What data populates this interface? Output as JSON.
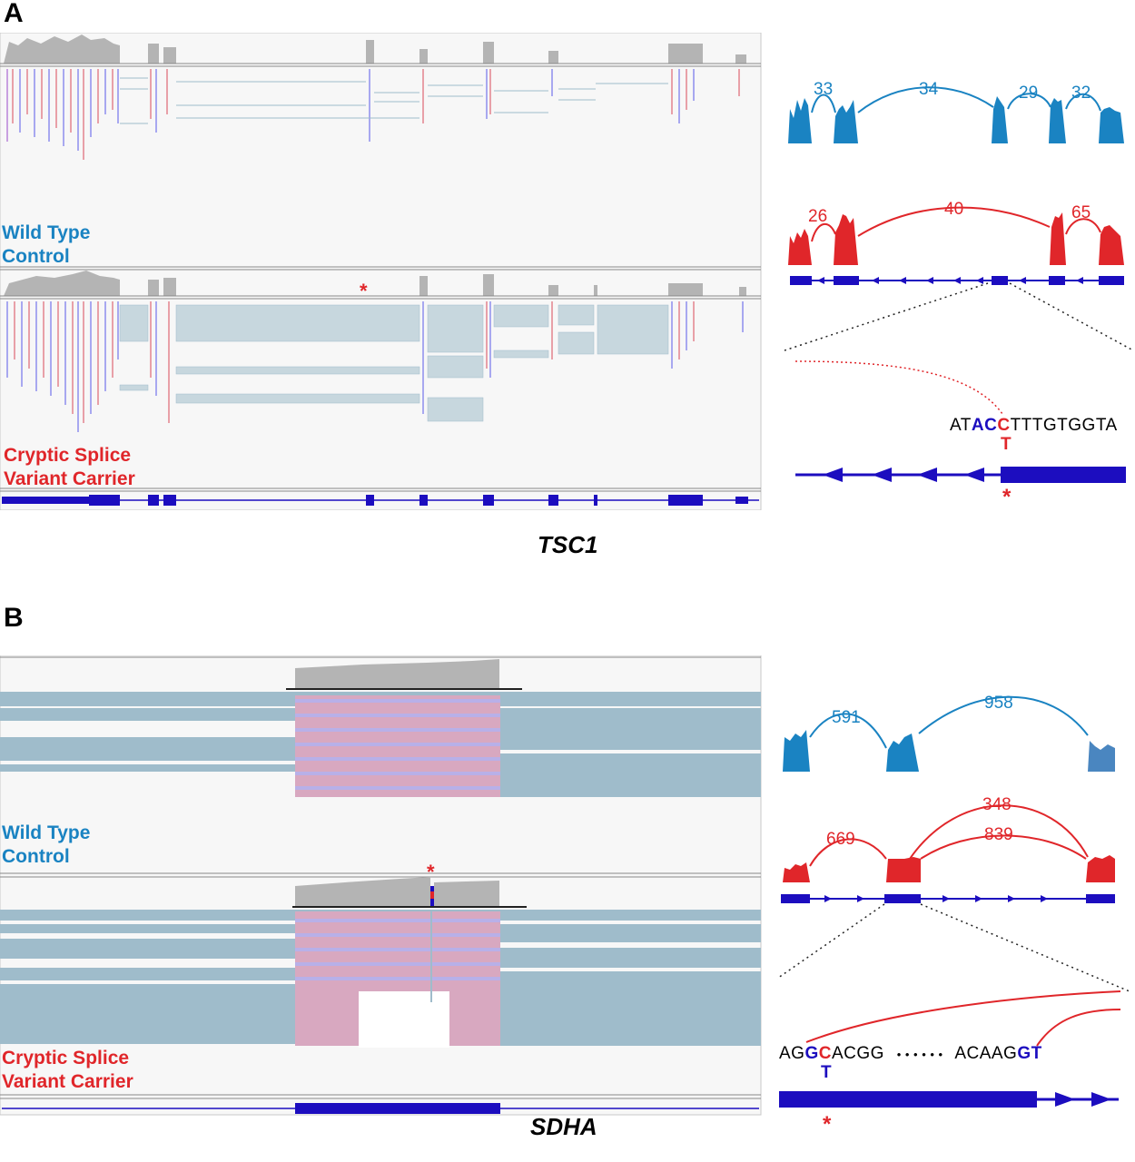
{
  "panels": [
    {
      "letter": "A",
      "gene": "TSC1",
      "wild_label_line1": "Wild Type",
      "wild_label_line2": "Control",
      "carrier_label_line1": "Cryptic Splice",
      "carrier_label_line2": "Variant Carrier",
      "wild_junction_counts": [
        "33",
        "34",
        "29",
        "32"
      ],
      "carrier_junction_counts": [
        "26",
        "40",
        "65"
      ],
      "sequence": {
        "prefix": "AT",
        "highlight_blue": "AC",
        "highlight_red": "C",
        "suffix": "TTTGTGGTA",
        "variant_base": "T"
      },
      "variant_marker": "*"
    },
    {
      "letter": "B",
      "gene": "SDHA",
      "wild_label_line1": "Wild Type",
      "wild_label_line2": "Control",
      "carrier_label_line1": "Cryptic Splice",
      "carrier_label_line2": "Variant Carrier",
      "wild_junction_counts": [
        "591",
        "958"
      ],
      "carrier_junction_counts": [
        "669",
        "348",
        "839"
      ],
      "sequence": {
        "prefix": "AG",
        "highlight_blue": "G",
        "highlight_red": "C",
        "middle": "ACGG",
        "dots": "• • • • • •",
        "suffix_plain": "ACAAG",
        "suffix_blue": "GT",
        "variant_base": "T"
      },
      "variant_marker": "*"
    }
  ],
  "colors": {
    "wild_type": "#1a83c2",
    "carrier": "#e0262a",
    "exon": "#1c0dbf",
    "read_fill": "#9fbccb",
    "coverage": "#b4b4b4"
  }
}
